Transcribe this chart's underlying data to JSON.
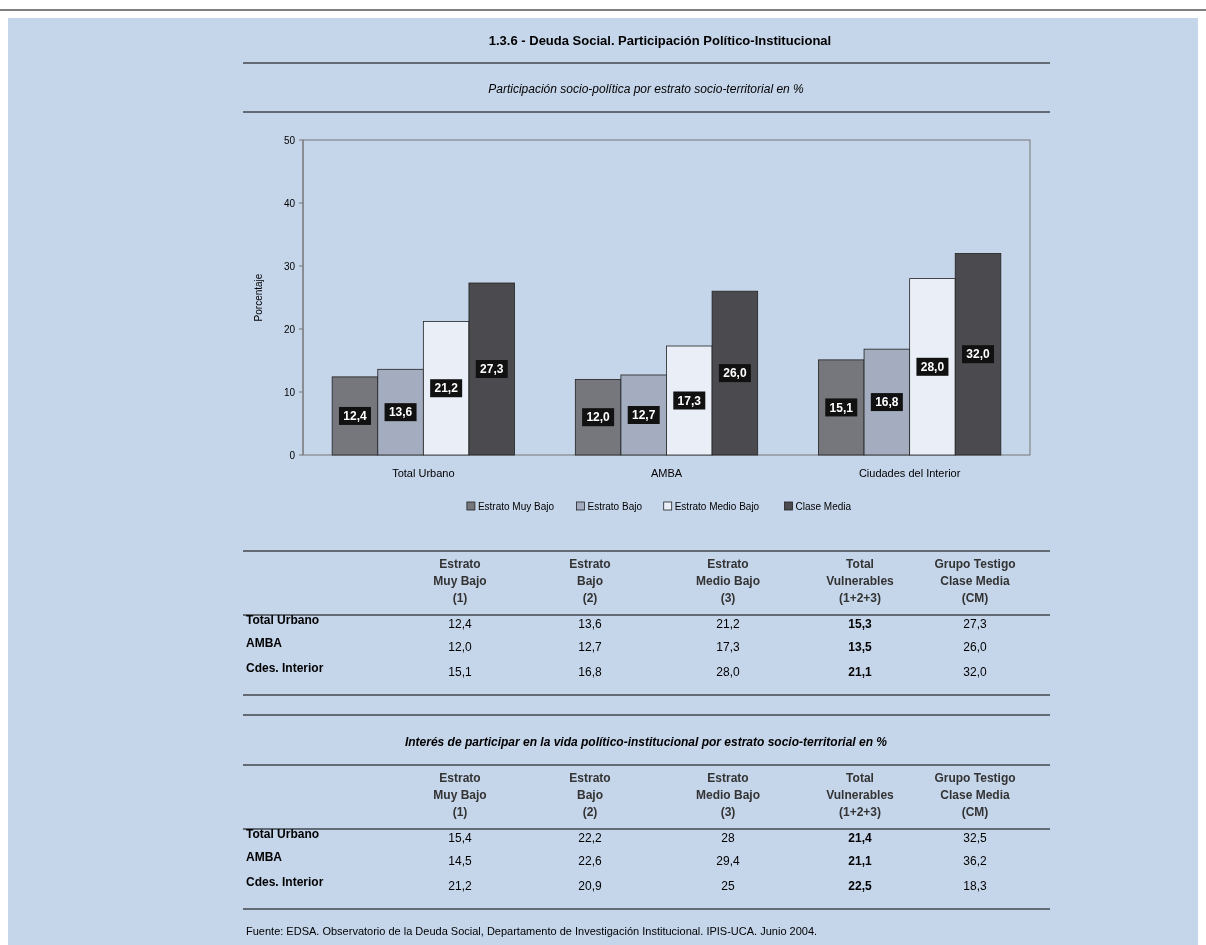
{
  "chart_data": [
    {
      "type": "bar",
      "title": "1.3.6 - Deuda Social. Participación Político-Institucional",
      "subtitle": "Participación socio-política  por estrato socio-territorial en %",
      "ylabel": "Porcentaje",
      "categories": [
        "Total Urbano",
        "AMBA",
        "Ciudades del Interior"
      ],
      "series": [
        {
          "name": "Estrato Muy Bajo",
          "color": "#75777c",
          "values": [
            12.4,
            12.0,
            15.1
          ],
          "value_labels": [
            "12,4",
            "12,0",
            "15,1"
          ]
        },
        {
          "name": "Estrato Bajo",
          "color": "#a3adbf",
          "values": [
            13.6,
            12.7,
            16.8
          ],
          "value_labels": [
            "13,6",
            "12,7",
            "16,8"
          ]
        },
        {
          "name": "Estrato Medio Bajo",
          "color": "#e9eef7",
          "values": [
            21.2,
            17.3,
            28.0
          ],
          "value_labels": [
            "21,2",
            "17,3",
            "28,0"
          ]
        },
        {
          "name": "Clase Media",
          "color": "#4b4b4f",
          "values": [
            27.3,
            26.0,
            32.0
          ],
          "value_labels": [
            "27,3",
            "26,0",
            "32,0"
          ]
        }
      ],
      "ylim": [
        0,
        50
      ],
      "yticks": [
        0,
        10,
        20,
        30,
        40,
        50
      ],
      "legend": "bottom"
    },
    {
      "type": "other",
      "categories": [
        "Estrato\nMuy Bajo\n(1)",
        "Estrato\nBajo\n(2)",
        "Estrato\nMedio Bajo\n(3)",
        "Total\nVulnerables\n(1+2+3)",
        "Grupo Testigo\nClase Media\n(CM)"
      ],
      "y_categories": [
        "Total Urbano",
        "AMBA",
        "Cdes. Interior"
      ],
      "cell_labels": [
        [
          "12,4",
          "13,6",
          "21,2",
          "15,3",
          "27,3"
        ],
        [
          "12,0",
          "12,7",
          "17,3",
          "13,5",
          "26,0"
        ],
        [
          "15,1",
          "16,8",
          "28,0",
          "21,1",
          "32,0"
        ]
      ]
    },
    {
      "type": "other",
      "title": "Interés de participar en la vida político-institucional  por estrato socio-territorial en %",
      "categories": [
        "Estrato\nMuy Bajo\n(1)",
        "Estrato\nBajo\n(2)",
        "Estrato\nMedio Bajo\n(3)",
        "Total\nVulnerables\n(1+2+3)",
        "Grupo Testigo\nClase Media\n(CM)"
      ],
      "y_categories": [
        "Total Urbano",
        "AMBA",
        "Cdes. Interior"
      ],
      "cell_labels": [
        [
          "15,4",
          "22,2",
          "28",
          "21,4",
          "32,5"
        ],
        [
          "14,5",
          "22,6",
          "29,4",
          "21,1",
          "36,2"
        ],
        [
          "21,2",
          "20,9",
          "25",
          "22,5",
          "18,3"
        ]
      ],
      "annotations": [
        "Fuente: EDSA. Observatorio de la Deuda Social, Departamento de Investigación Institucional. IPIS-UCA. Junio 2004."
      ]
    }
  ]
}
